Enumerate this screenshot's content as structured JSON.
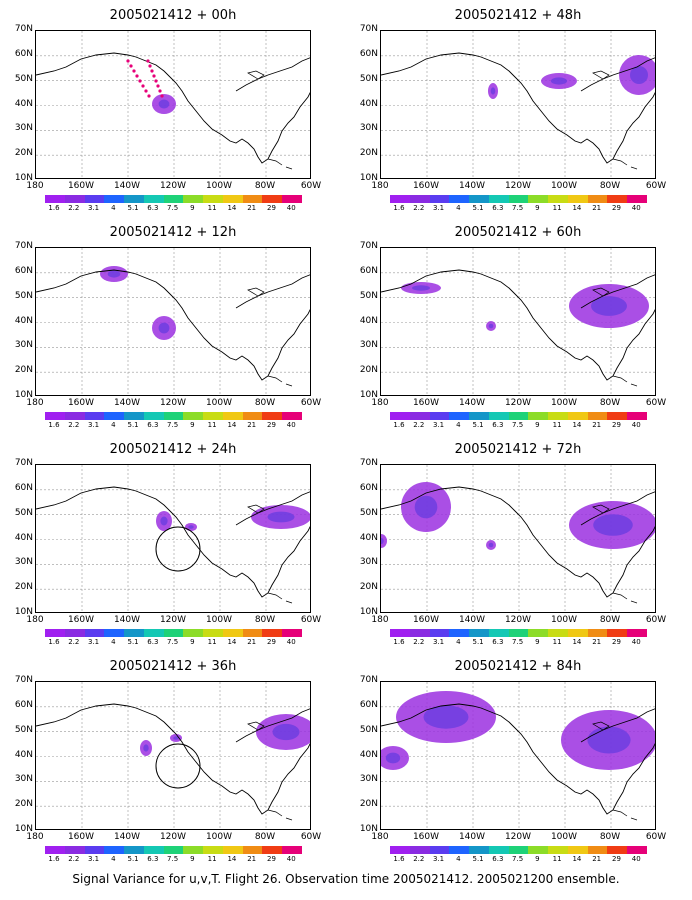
{
  "footer": "Signal Variance for u,v,T. Flight 26. Observation time 2005021412. 2005021200 ensemble.",
  "lat_labels": [
    "70N",
    "60N",
    "50N",
    "40N",
    "30N",
    "20N",
    "10N"
  ],
  "lon_labels": [
    "180",
    "160W",
    "140W",
    "120W",
    "100W",
    "80W",
    "60W"
  ],
  "colorbar_labels": [
    "1.6",
    "2.2",
    "3.1",
    "4",
    "5.1",
    "6.3",
    "7.5",
    "9",
    "11",
    "14",
    "21",
    "29",
    "40"
  ],
  "colorbar_colors": [
    "#a020f0",
    "#8a2be2",
    "#5a3cf0",
    "#1e64ff",
    "#1496c8",
    "#14c8b4",
    "#1ed278",
    "#8cdc28",
    "#c8dc14",
    "#f0c814",
    "#f08c14",
    "#f03c14",
    "#e60078"
  ],
  "panels": [
    {
      "title": "2005021412 + 00h",
      "icon": "flight-track-and-variance-blob"
    },
    {
      "title": "2005021412 + 48h",
      "icon": "variance-blobs"
    },
    {
      "title": "2005021412 + 12h",
      "icon": "variance-blobs"
    },
    {
      "title": "2005021412 + 60h",
      "icon": "variance-blobs"
    },
    {
      "title": "2005021412 + 24h",
      "icon": "variance-blobs-with-circle"
    },
    {
      "title": "2005021412 + 72h",
      "icon": "variance-blobs"
    },
    {
      "title": "2005021412 + 36h",
      "icon": "variance-blobs-with-circle"
    },
    {
      "title": "2005021412 + 84h",
      "icon": "variance-blobs"
    }
  ]
}
